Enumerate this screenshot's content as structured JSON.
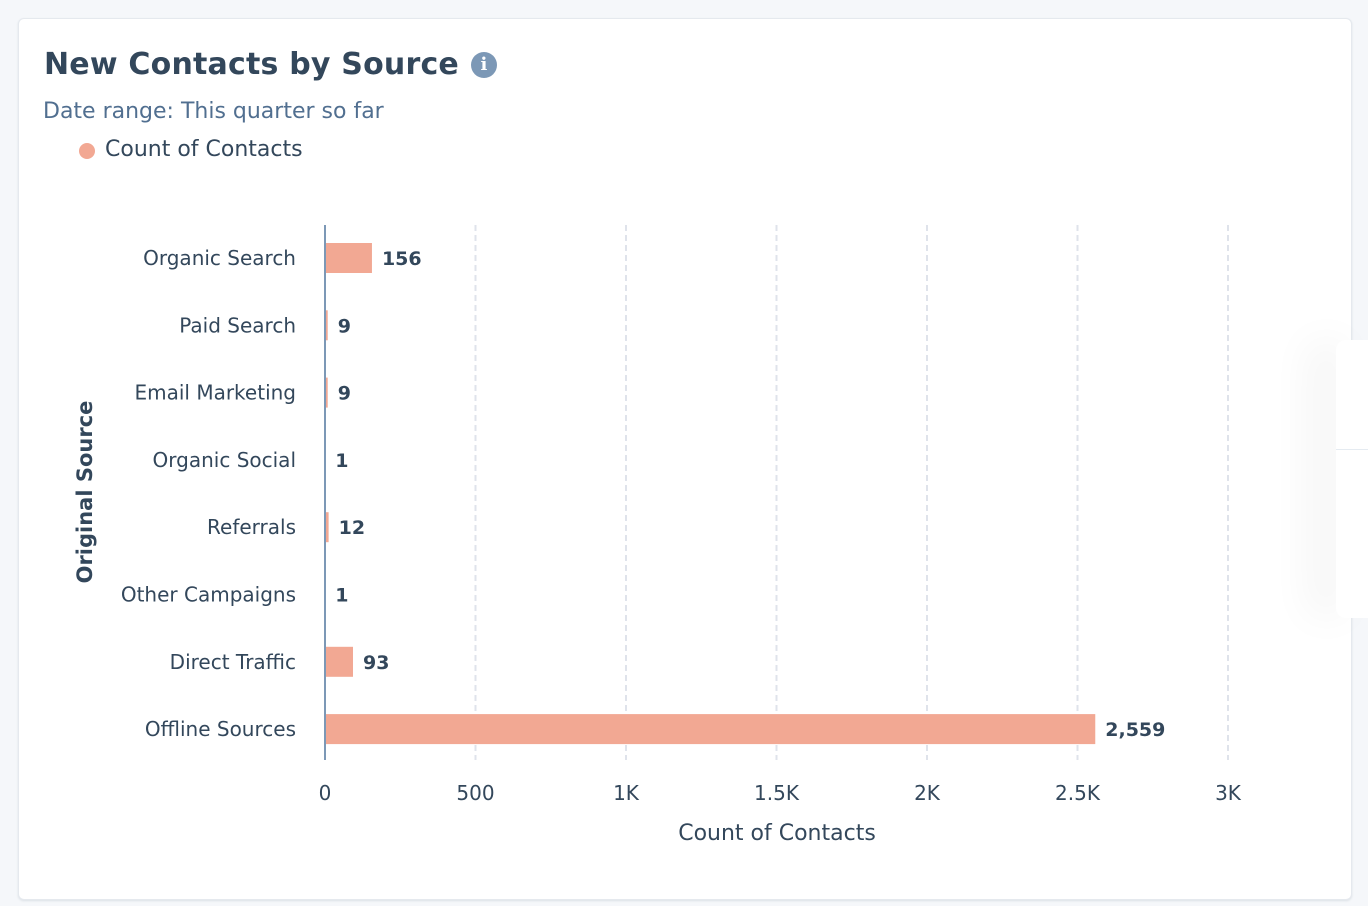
{
  "card": {
    "title": "New Contacts by Source",
    "info_icon": "info-icon",
    "subtitle": "Date range: This quarter so far",
    "legend": [
      {
        "label": "Count of Contacts",
        "color": "#f2a893"
      }
    ]
  },
  "chart_data": {
    "type": "bar",
    "orientation": "horizontal",
    "title": "New Contacts by Source",
    "categories": [
      "Organic Search",
      "Paid Search",
      "Email Marketing",
      "Organic Social",
      "Referrals",
      "Other Campaigns",
      "Direct Traffic",
      "Offline Sources"
    ],
    "series": [
      {
        "name": "Count of Contacts",
        "color": "#f2a893",
        "values": [
          156,
          9,
          9,
          1,
          12,
          1,
          93,
          2559
        ]
      }
    ],
    "value_labels": [
      "156",
      "9",
      "9",
      "1",
      "12",
      "1",
      "93",
      "2,559"
    ],
    "xlabel": "Count of Contacts",
    "ylabel": "Original Source",
    "xlim": [
      0,
      3000
    ],
    "xticks": [
      0,
      500,
      1000,
      1500,
      2000,
      2500,
      3000
    ],
    "xtick_labels": [
      "0",
      "500",
      "1K",
      "1.5K",
      "2K",
      "2.5K",
      "3K"
    ],
    "grid": "vertical-dashed",
    "legend_position": "top-left"
  }
}
